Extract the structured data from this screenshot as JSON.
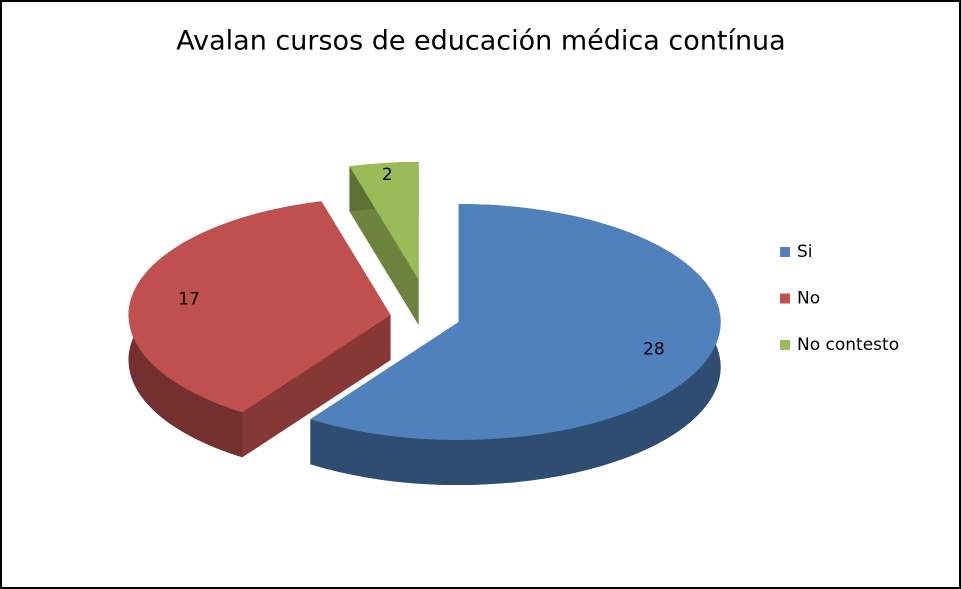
{
  "chart_data": {
    "type": "pie",
    "title": "Avalan cursos de educación médica contínua",
    "categories": [
      "Si",
      "No",
      "No contesto"
    ],
    "values": [
      28,
      17,
      2
    ],
    "colors": [
      "#4f81bd",
      "#c0504d",
      "#9bbb59"
    ],
    "legend": "right"
  }
}
